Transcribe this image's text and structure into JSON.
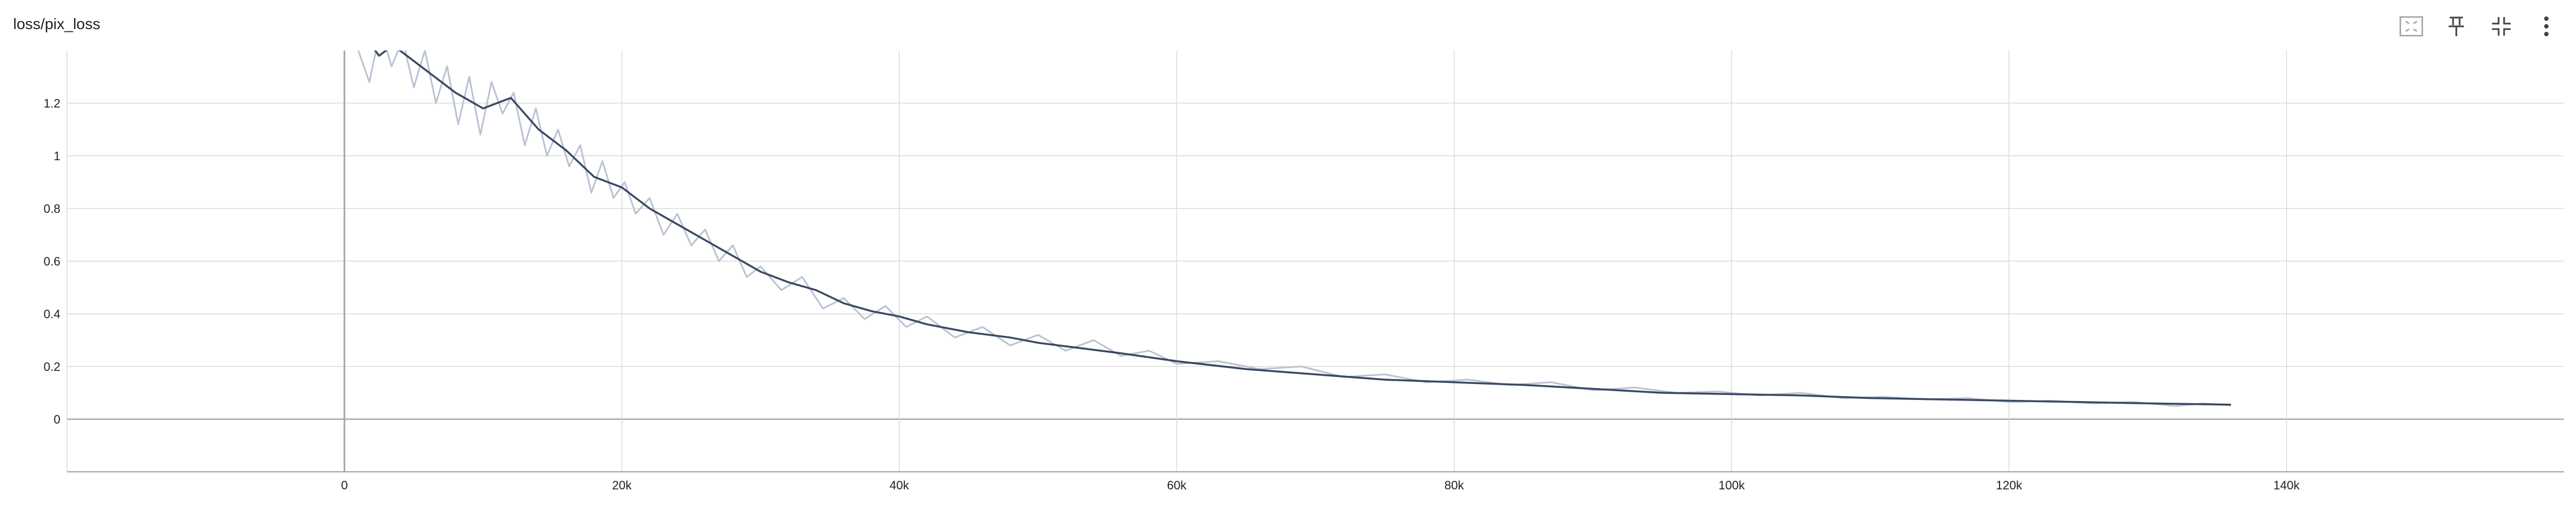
{
  "card": {
    "title": "loss/pix_loss"
  },
  "toolbar": {
    "icons": [
      "fit-domain-icon",
      "pin-icon",
      "collapse-icon",
      "more-vert-icon"
    ]
  },
  "colors": {
    "smoothed": "#3b4863",
    "raw": "#b9c2d3",
    "grid": "#dadada",
    "axis": "#9e9e9e",
    "zero_line": "#a6a6a6"
  },
  "chart_data": {
    "type": "line",
    "title": "",
    "xlabel": "",
    "ylabel": "",
    "xlim": [
      -20000,
      160000
    ],
    "ylim": [
      -0.2,
      1.4
    ],
    "x_ticks": [
      0,
      20000,
      40000,
      60000,
      80000,
      100000,
      120000,
      140000
    ],
    "x_tick_labels": [
      "0",
      "20k",
      "40k",
      "60k",
      "80k",
      "100k",
      "120k",
      "140k"
    ],
    "y_ticks": [
      0,
      0.2,
      0.4,
      0.6,
      0.8,
      1,
      1.2
    ],
    "y_tick_labels": [
      "0",
      "0.2",
      "0.4",
      "0.6",
      "0.8",
      "1",
      "1.2"
    ],
    "grid": true,
    "legend": "none",
    "series": [
      {
        "role": "smoothed",
        "x": [
          0,
          1500,
          2500,
          3500,
          5000,
          6500,
          8000,
          10000,
          12000,
          14000,
          16000,
          18000,
          20000,
          22000,
          24000,
          26000,
          28000,
          30000,
          32000,
          34000,
          36000,
          38000,
          40000,
          42000,
          45000,
          48000,
          50000,
          53000,
          56000,
          60000,
          65000,
          70000,
          75000,
          80000,
          85000,
          90000,
          95000,
          100000,
          105000,
          110000,
          115000,
          120000,
          125000,
          130000,
          136000
        ],
        "values": [
          1.55,
          1.45,
          1.38,
          1.42,
          1.36,
          1.3,
          1.24,
          1.18,
          1.22,
          1.1,
          1.02,
          0.92,
          0.88,
          0.8,
          0.74,
          0.68,
          0.62,
          0.56,
          0.52,
          0.49,
          0.44,
          0.41,
          0.39,
          0.36,
          0.33,
          0.31,
          0.29,
          0.27,
          0.25,
          0.22,
          0.19,
          0.17,
          0.15,
          0.14,
          0.13,
          0.115,
          0.1,
          0.095,
          0.09,
          0.08,
          0.075,
          0.07,
          0.065,
          0.06,
          0.055
        ]
      },
      {
        "role": "raw",
        "x": [
          0,
          1000,
          1800,
          2600,
          3400,
          4200,
          5000,
          5800,
          6600,
          7400,
          8200,
          9000,
          9800,
          10600,
          11400,
          12200,
          13000,
          13800,
          14600,
          15400,
          16200,
          17000,
          17800,
          18600,
          19400,
          20200,
          21000,
          22000,
          23000,
          24000,
          25000,
          26000,
          27000,
          28000,
          29000,
          30000,
          31500,
          33000,
          34500,
          36000,
          37500,
          39000,
          40500,
          42000,
          44000,
          46000,
          48000,
          50000,
          52000,
          54000,
          56000,
          58000,
          60000,
          63000,
          66000,
          69000,
          72000,
          75000,
          78000,
          81000,
          84000,
          87000,
          90000,
          93000,
          96000,
          99000,
          102000,
          105000,
          108000,
          111000,
          114000,
          117000,
          120000,
          123000,
          126000,
          129000,
          132000,
          134000,
          136000
        ],
        "values": [
          1.6,
          1.4,
          1.28,
          1.48,
          1.34,
          1.44,
          1.26,
          1.4,
          1.2,
          1.34,
          1.12,
          1.3,
          1.08,
          1.28,
          1.16,
          1.24,
          1.04,
          1.18,
          1.0,
          1.1,
          0.96,
          1.04,
          0.86,
          0.98,
          0.84,
          0.9,
          0.78,
          0.84,
          0.7,
          0.78,
          0.66,
          0.72,
          0.6,
          0.66,
          0.54,
          0.58,
          0.49,
          0.54,
          0.42,
          0.46,
          0.38,
          0.43,
          0.35,
          0.39,
          0.31,
          0.35,
          0.28,
          0.32,
          0.26,
          0.3,
          0.24,
          0.26,
          0.21,
          0.22,
          0.19,
          0.2,
          0.16,
          0.17,
          0.14,
          0.15,
          0.13,
          0.14,
          0.11,
          0.12,
          0.1,
          0.105,
          0.09,
          0.1,
          0.08,
          0.085,
          0.075,
          0.08,
          0.065,
          0.07,
          0.06,
          0.065,
          0.05,
          0.06,
          0.052
        ]
      }
    ]
  }
}
